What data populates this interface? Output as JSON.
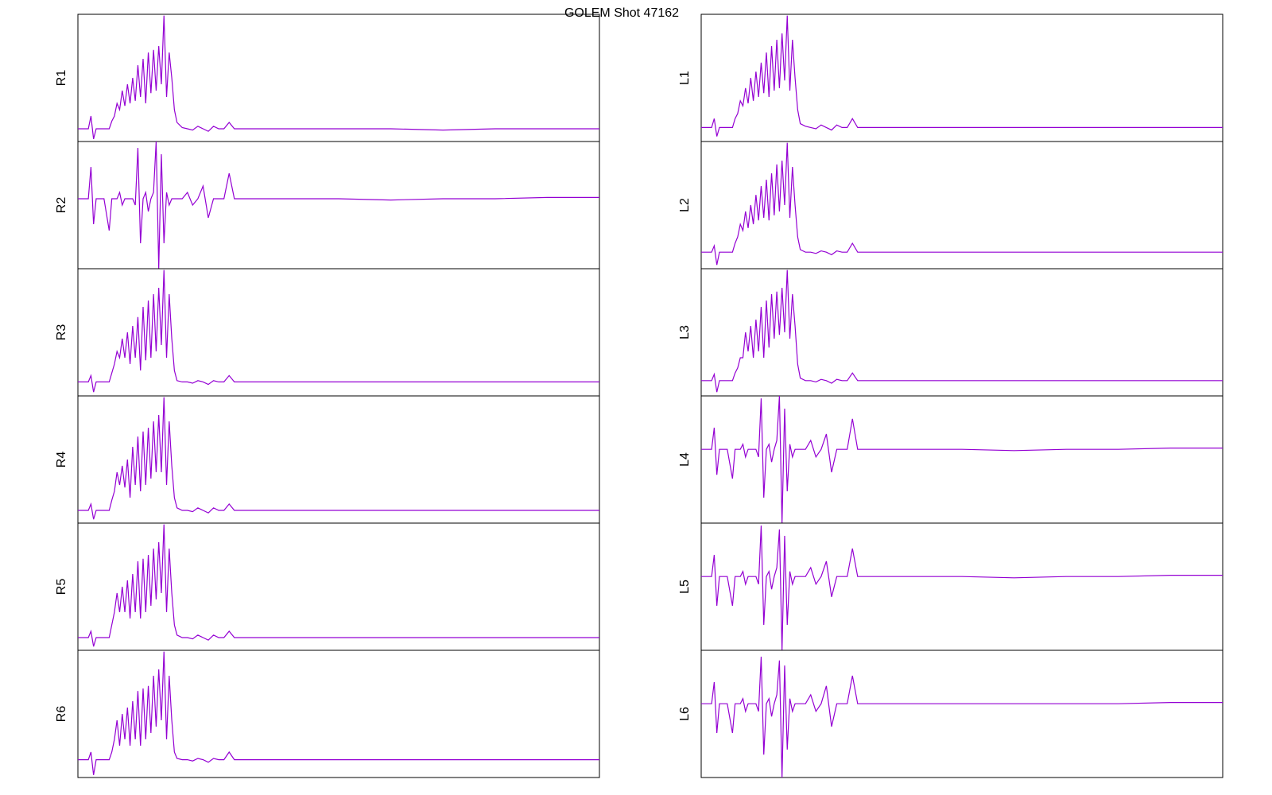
{
  "title": "GOLEM Shot 47162",
  "chart_data": [
    {
      "type": "line",
      "ylabel": "R1",
      "color": "#9400d3",
      "xlim": [
        0,
        100
      ],
      "ylim": [
        0,
        1
      ],
      "x": [
        0,
        1,
        2,
        2.5,
        3,
        3.5,
        4,
        5,
        6,
        6.5,
        7,
        7.5,
        8,
        8.5,
        9,
        9.5,
        10,
        10.5,
        11,
        11.5,
        12,
        12.5,
        13,
        13.5,
        14,
        14.5,
        15,
        15.5,
        16,
        16.5,
        17,
        17.5,
        18,
        18.5,
        19,
        20,
        21,
        22,
        23,
        24,
        25,
        26,
        27,
        28,
        29,
        30,
        40,
        50,
        60,
        70,
        80,
        90,
        100
      ],
      "values": [
        0.1,
        0.1,
        0.1,
        0.2,
        0.02,
        0.1,
        0.1,
        0.1,
        0.1,
        0.16,
        0.2,
        0.3,
        0.25,
        0.4,
        0.28,
        0.45,
        0.3,
        0.5,
        0.32,
        0.6,
        0.35,
        0.65,
        0.3,
        0.7,
        0.38,
        0.72,
        0.4,
        0.75,
        0.45,
        0.99,
        0.35,
        0.7,
        0.5,
        0.25,
        0.15,
        0.11,
        0.1,
        0.09,
        0.12,
        0.1,
        0.08,
        0.12,
        0.1,
        0.1,
        0.15,
        0.1,
        0.1,
        0.1,
        0.1,
        0.09,
        0.1,
        0.1,
        0.1
      ]
    },
    {
      "type": "line",
      "ylabel": "R2",
      "color": "#9400d3",
      "xlim": [
        0,
        100
      ],
      "ylim": [
        0,
        1
      ],
      "x": [
        0,
        1,
        2,
        2.5,
        3,
        3.5,
        4,
        5,
        6,
        6.5,
        7,
        7.5,
        8,
        8.5,
        9,
        9.5,
        10,
        10.5,
        11,
        11.5,
        12,
        12.5,
        13,
        13.5,
        14,
        14.5,
        15,
        15.5,
        16,
        16.5,
        17,
        17.5,
        18,
        18.5,
        19,
        20,
        21,
        22,
        23,
        24,
        25,
        26,
        27,
        28,
        29,
        30,
        40,
        50,
        60,
        70,
        80,
        90,
        100
      ],
      "values": [
        0.55,
        0.55,
        0.55,
        0.8,
        0.35,
        0.55,
        0.55,
        0.55,
        0.3,
        0.55,
        0.55,
        0.55,
        0.6,
        0.5,
        0.55,
        0.55,
        0.55,
        0.55,
        0.5,
        0.95,
        0.2,
        0.55,
        0.6,
        0.45,
        0.55,
        0.6,
        1.0,
        0.0,
        0.9,
        0.2,
        0.6,
        0.5,
        0.55,
        0.55,
        0.55,
        0.55,
        0.6,
        0.5,
        0.55,
        0.65,
        0.4,
        0.55,
        0.55,
        0.55,
        0.75,
        0.55,
        0.55,
        0.55,
        0.54,
        0.55,
        0.55,
        0.56,
        0.56
      ]
    },
    {
      "type": "line",
      "ylabel": "R3",
      "color": "#9400d3",
      "xlim": [
        0,
        100
      ],
      "ylim": [
        0,
        1
      ],
      "x": [
        0,
        1,
        2,
        2.5,
        3,
        3.5,
        4,
        5,
        6,
        6.5,
        7,
        7.5,
        8,
        8.5,
        9,
        9.5,
        10,
        10.5,
        11,
        11.5,
        12,
        12.5,
        13,
        13.5,
        14,
        14.5,
        15,
        15.5,
        16,
        16.5,
        17,
        17.5,
        18,
        18.5,
        19,
        20,
        21,
        22,
        23,
        24,
        25,
        26,
        27,
        28,
        29,
        30,
        40,
        50,
        60,
        70,
        80,
        90,
        100
      ],
      "values": [
        0.11,
        0.11,
        0.11,
        0.16,
        0.03,
        0.11,
        0.11,
        0.11,
        0.11,
        0.18,
        0.25,
        0.35,
        0.3,
        0.45,
        0.3,
        0.5,
        0.25,
        0.55,
        0.3,
        0.62,
        0.2,
        0.7,
        0.28,
        0.75,
        0.3,
        0.8,
        0.35,
        0.85,
        0.4,
        0.99,
        0.3,
        0.8,
        0.45,
        0.2,
        0.12,
        0.11,
        0.11,
        0.1,
        0.12,
        0.11,
        0.09,
        0.12,
        0.11,
        0.11,
        0.16,
        0.11,
        0.11,
        0.11,
        0.11,
        0.11,
        0.11,
        0.11,
        0.11
      ]
    },
    {
      "type": "line",
      "ylabel": "R4",
      "color": "#9400d3",
      "xlim": [
        0,
        100
      ],
      "ylim": [
        0,
        1
      ],
      "x": [
        0,
        1,
        2,
        2.5,
        3,
        3.5,
        4,
        5,
        6,
        6.5,
        7,
        7.5,
        8,
        8.5,
        9,
        9.5,
        10,
        10.5,
        11,
        11.5,
        12,
        12.5,
        13,
        13.5,
        14,
        14.5,
        15,
        15.5,
        16,
        16.5,
        17,
        17.5,
        18,
        18.5,
        19,
        20,
        21,
        22,
        23,
        24,
        25,
        26,
        27,
        28,
        29,
        30,
        40,
        50,
        60,
        70,
        80,
        90,
        100
      ],
      "values": [
        0.1,
        0.1,
        0.1,
        0.15,
        0.03,
        0.1,
        0.1,
        0.1,
        0.1,
        0.18,
        0.25,
        0.4,
        0.3,
        0.45,
        0.28,
        0.5,
        0.2,
        0.6,
        0.3,
        0.68,
        0.25,
        0.72,
        0.3,
        0.75,
        0.35,
        0.8,
        0.4,
        0.85,
        0.4,
        0.99,
        0.3,
        0.8,
        0.45,
        0.2,
        0.12,
        0.1,
        0.1,
        0.09,
        0.12,
        0.1,
        0.08,
        0.12,
        0.1,
        0.1,
        0.15,
        0.1,
        0.1,
        0.1,
        0.1,
        0.1,
        0.1,
        0.1,
        0.1
      ]
    },
    {
      "type": "line",
      "ylabel": "R5",
      "color": "#9400d3",
      "xlim": [
        0,
        100
      ],
      "ylim": [
        0,
        1
      ],
      "x": [
        0,
        1,
        2,
        2.5,
        3,
        3.5,
        4,
        5,
        6,
        6.5,
        7,
        7.5,
        8,
        8.5,
        9,
        9.5,
        10,
        10.5,
        11,
        11.5,
        12,
        12.5,
        13,
        13.5,
        14,
        14.5,
        15,
        15.5,
        16,
        16.5,
        17,
        17.5,
        18,
        18.5,
        19,
        20,
        21,
        22,
        23,
        24,
        25,
        26,
        27,
        28,
        29,
        30,
        40,
        50,
        60,
        70,
        80,
        90,
        100
      ],
      "values": [
        0.1,
        0.1,
        0.1,
        0.15,
        0.03,
        0.1,
        0.1,
        0.1,
        0.1,
        0.2,
        0.3,
        0.45,
        0.3,
        0.5,
        0.3,
        0.55,
        0.25,
        0.6,
        0.3,
        0.7,
        0.25,
        0.72,
        0.3,
        0.75,
        0.35,
        0.8,
        0.4,
        0.85,
        0.45,
        0.99,
        0.3,
        0.8,
        0.45,
        0.2,
        0.12,
        0.1,
        0.1,
        0.09,
        0.12,
        0.1,
        0.08,
        0.12,
        0.1,
        0.1,
        0.15,
        0.1,
        0.1,
        0.1,
        0.1,
        0.1,
        0.1,
        0.1,
        0.1
      ]
    },
    {
      "type": "line",
      "ylabel": "R6",
      "color": "#9400d3",
      "xlim": [
        0,
        100
      ],
      "ylim": [
        0,
        1
      ],
      "x": [
        0,
        1,
        2,
        2.5,
        3,
        3.5,
        4,
        5,
        6,
        6.5,
        7,
        7.5,
        8,
        8.5,
        9,
        9.5,
        10,
        10.5,
        11,
        11.5,
        12,
        12.5,
        13,
        13.5,
        14,
        14.5,
        15,
        15.5,
        16,
        16.5,
        17,
        17.5,
        18,
        18.5,
        19,
        20,
        21,
        22,
        23,
        24,
        25,
        26,
        27,
        28,
        29,
        30,
        40,
        50,
        60,
        70,
        80,
        90,
        100
      ],
      "values": [
        0.14,
        0.14,
        0.14,
        0.2,
        0.02,
        0.14,
        0.14,
        0.14,
        0.14,
        0.2,
        0.3,
        0.45,
        0.25,
        0.5,
        0.3,
        0.55,
        0.25,
        0.6,
        0.3,
        0.68,
        0.25,
        0.7,
        0.3,
        0.72,
        0.35,
        0.8,
        0.4,
        0.85,
        0.45,
        0.99,
        0.3,
        0.8,
        0.45,
        0.2,
        0.15,
        0.14,
        0.14,
        0.13,
        0.15,
        0.14,
        0.12,
        0.15,
        0.14,
        0.14,
        0.2,
        0.14,
        0.14,
        0.14,
        0.14,
        0.14,
        0.14,
        0.14,
        0.14
      ]
    },
    {
      "type": "line",
      "ylabel": "L1",
      "color": "#9400d3",
      "xlim": [
        0,
        100
      ],
      "ylim": [
        0,
        1
      ],
      "x": [
        0,
        1,
        2,
        2.5,
        3,
        3.5,
        4,
        5,
        6,
        6.5,
        7,
        7.5,
        8,
        8.5,
        9,
        9.5,
        10,
        10.5,
        11,
        11.5,
        12,
        12.5,
        13,
        13.5,
        14,
        14.5,
        15,
        15.5,
        16,
        16.5,
        17,
        17.5,
        18,
        18.5,
        19,
        20,
        21,
        22,
        23,
        24,
        25,
        26,
        27,
        28,
        29,
        30,
        40,
        50,
        60,
        70,
        80,
        90,
        100
      ],
      "values": [
        0.11,
        0.11,
        0.11,
        0.18,
        0.04,
        0.11,
        0.11,
        0.11,
        0.11,
        0.18,
        0.22,
        0.32,
        0.28,
        0.42,
        0.3,
        0.5,
        0.32,
        0.55,
        0.35,
        0.62,
        0.38,
        0.7,
        0.35,
        0.75,
        0.4,
        0.8,
        0.42,
        0.85,
        0.48,
        0.99,
        0.4,
        0.8,
        0.5,
        0.25,
        0.14,
        0.12,
        0.11,
        0.1,
        0.13,
        0.11,
        0.09,
        0.13,
        0.11,
        0.11,
        0.18,
        0.11,
        0.11,
        0.11,
        0.11,
        0.11,
        0.11,
        0.11,
        0.11
      ]
    },
    {
      "type": "line",
      "ylabel": "L2",
      "color": "#9400d3",
      "xlim": [
        0,
        100
      ],
      "ylim": [
        0,
        1
      ],
      "x": [
        0,
        1,
        2,
        2.5,
        3,
        3.5,
        4,
        5,
        6,
        6.5,
        7,
        7.5,
        8,
        8.5,
        9,
        9.5,
        10,
        10.5,
        11,
        11.5,
        12,
        12.5,
        13,
        13.5,
        14,
        14.5,
        15,
        15.5,
        16,
        16.5,
        17,
        17.5,
        18,
        18.5,
        19,
        20,
        21,
        22,
        23,
        24,
        25,
        26,
        27,
        28,
        29,
        30,
        40,
        50,
        60,
        70,
        80,
        90,
        100
      ],
      "values": [
        0.13,
        0.13,
        0.13,
        0.18,
        0.03,
        0.13,
        0.13,
        0.13,
        0.13,
        0.2,
        0.25,
        0.35,
        0.3,
        0.45,
        0.32,
        0.5,
        0.35,
        0.58,
        0.38,
        0.65,
        0.4,
        0.7,
        0.38,
        0.75,
        0.42,
        0.82,
        0.45,
        0.85,
        0.5,
        0.99,
        0.4,
        0.8,
        0.5,
        0.25,
        0.15,
        0.13,
        0.13,
        0.12,
        0.14,
        0.13,
        0.11,
        0.14,
        0.13,
        0.13,
        0.2,
        0.13,
        0.13,
        0.13,
        0.13,
        0.13,
        0.13,
        0.13,
        0.13
      ]
    },
    {
      "type": "line",
      "ylabel": "L3",
      "color": "#9400d3",
      "xlim": [
        0,
        100
      ],
      "ylim": [
        0,
        1
      ],
      "x": [
        0,
        1,
        2,
        2.5,
        3,
        3.5,
        4,
        5,
        6,
        6.5,
        7,
        7.5,
        8,
        8.5,
        9,
        9.5,
        10,
        10.5,
        11,
        11.5,
        12,
        12.5,
        13,
        13.5,
        14,
        14.5,
        15,
        15.5,
        16,
        16.5,
        17,
        17.5,
        18,
        18.5,
        19,
        20,
        21,
        22,
        23,
        24,
        25,
        26,
        27,
        28,
        29,
        30,
        40,
        50,
        60,
        70,
        80,
        90,
        100
      ],
      "values": [
        0.12,
        0.12,
        0.12,
        0.17,
        0.03,
        0.12,
        0.12,
        0.12,
        0.12,
        0.18,
        0.22,
        0.3,
        0.3,
        0.5,
        0.35,
        0.55,
        0.3,
        0.6,
        0.35,
        0.7,
        0.3,
        0.75,
        0.38,
        0.8,
        0.45,
        0.82,
        0.48,
        0.85,
        0.5,
        0.99,
        0.45,
        0.8,
        0.55,
        0.25,
        0.14,
        0.12,
        0.12,
        0.11,
        0.13,
        0.12,
        0.1,
        0.13,
        0.12,
        0.12,
        0.18,
        0.12,
        0.12,
        0.12,
        0.12,
        0.12,
        0.12,
        0.12,
        0.12
      ]
    },
    {
      "type": "line",
      "ylabel": "L4",
      "color": "#9400d3",
      "xlim": [
        0,
        100
      ],
      "ylim": [
        0,
        1
      ],
      "x": [
        0,
        1,
        2,
        2.5,
        3,
        3.5,
        4,
        5,
        6,
        6.5,
        7,
        7.5,
        8,
        8.5,
        9,
        9.5,
        10,
        10.5,
        11,
        11.5,
        12,
        12.5,
        13,
        13.5,
        14,
        14.5,
        15,
        15.5,
        16,
        16.5,
        17,
        17.5,
        18,
        18.5,
        19,
        20,
        21,
        22,
        23,
        24,
        25,
        26,
        27,
        28,
        29,
        30,
        40,
        50,
        60,
        70,
        80,
        90,
        100
      ],
      "values": [
        0.58,
        0.58,
        0.58,
        0.75,
        0.38,
        0.58,
        0.58,
        0.58,
        0.35,
        0.58,
        0.58,
        0.58,
        0.62,
        0.52,
        0.58,
        0.58,
        0.58,
        0.58,
        0.52,
        0.98,
        0.2,
        0.58,
        0.62,
        0.48,
        0.58,
        0.65,
        1.0,
        0.0,
        0.9,
        0.25,
        0.62,
        0.52,
        0.58,
        0.58,
        0.58,
        0.58,
        0.65,
        0.52,
        0.58,
        0.7,
        0.4,
        0.58,
        0.58,
        0.58,
        0.82,
        0.58,
        0.58,
        0.58,
        0.57,
        0.58,
        0.58,
        0.59,
        0.59
      ]
    },
    {
      "type": "line",
      "ylabel": "L5",
      "color": "#9400d3",
      "xlim": [
        0,
        100
      ],
      "ylim": [
        0,
        1
      ],
      "x": [
        0,
        1,
        2,
        2.5,
        3,
        3.5,
        4,
        5,
        6,
        6.5,
        7,
        7.5,
        8,
        8.5,
        9,
        9.5,
        10,
        10.5,
        11,
        11.5,
        12,
        12.5,
        13,
        13.5,
        14,
        14.5,
        15,
        15.5,
        16,
        16.5,
        17,
        17.5,
        18,
        18.5,
        19,
        20,
        21,
        22,
        23,
        24,
        25,
        26,
        27,
        28,
        29,
        30,
        40,
        50,
        60,
        70,
        80,
        90,
        100
      ],
      "values": [
        0.58,
        0.58,
        0.58,
        0.75,
        0.35,
        0.58,
        0.58,
        0.58,
        0.35,
        0.58,
        0.58,
        0.58,
        0.62,
        0.52,
        0.58,
        0.58,
        0.58,
        0.58,
        0.52,
        0.98,
        0.2,
        0.58,
        0.62,
        0.48,
        0.58,
        0.65,
        0.95,
        0.0,
        0.9,
        0.2,
        0.62,
        0.52,
        0.58,
        0.58,
        0.58,
        0.58,
        0.65,
        0.52,
        0.58,
        0.7,
        0.42,
        0.58,
        0.58,
        0.58,
        0.8,
        0.58,
        0.58,
        0.58,
        0.57,
        0.58,
        0.58,
        0.59,
        0.59
      ]
    },
    {
      "type": "line",
      "ylabel": "L6",
      "color": "#9400d3",
      "xlim": [
        0,
        100
      ],
      "ylim": [
        0,
        1
      ],
      "x": [
        0,
        1,
        2,
        2.5,
        3,
        3.5,
        4,
        5,
        6,
        6.5,
        7,
        7.5,
        8,
        8.5,
        9,
        9.5,
        10,
        10.5,
        11,
        11.5,
        12,
        12.5,
        13,
        13.5,
        14,
        14.5,
        15,
        15.5,
        16,
        16.5,
        17,
        17.5,
        18,
        18.5,
        19,
        20,
        21,
        22,
        23,
        24,
        25,
        26,
        27,
        28,
        29,
        30,
        40,
        50,
        60,
        70,
        80,
        90,
        100
      ],
      "values": [
        0.58,
        0.58,
        0.58,
        0.75,
        0.35,
        0.58,
        0.58,
        0.58,
        0.35,
        0.58,
        0.58,
        0.58,
        0.62,
        0.52,
        0.58,
        0.58,
        0.58,
        0.58,
        0.52,
        0.95,
        0.18,
        0.58,
        0.62,
        0.48,
        0.58,
        0.65,
        0.92,
        0.0,
        0.88,
        0.22,
        0.62,
        0.52,
        0.58,
        0.58,
        0.58,
        0.58,
        0.65,
        0.52,
        0.58,
        0.72,
        0.4,
        0.58,
        0.58,
        0.58,
        0.8,
        0.58,
        0.58,
        0.58,
        0.58,
        0.58,
        0.58,
        0.59,
        0.59
      ]
    }
  ]
}
